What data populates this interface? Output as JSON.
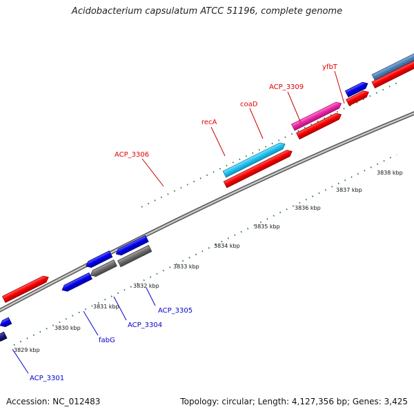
{
  "title": "Acidobacterium capsulatum ATCC 51196, complete genome",
  "accession_text": "Accession: NC_012483",
  "summary_text": "Topology: circular; Length: 4,127,356 bp; Genes: 3,425",
  "colors": {
    "forward_label": "#dd0000",
    "reverse_label": "#0000cc",
    "backbone": "#8c8c8c",
    "tick": "#2a7a2a"
  },
  "scale_ticks": [
    {
      "label": "3829 kbp"
    },
    {
      "label": "3830 kbp"
    },
    {
      "label": "3831 kbp"
    },
    {
      "label": "3832 kbp"
    },
    {
      "label": "3833 kbp"
    },
    {
      "label": "3834 kbp"
    },
    {
      "label": "3835 kbp"
    },
    {
      "label": "3836 kbp"
    },
    {
      "label": "3837 kbp"
    },
    {
      "label": "3838 kbp"
    }
  ],
  "gene_labels": [
    {
      "text": "ACP_3306",
      "strand": "forward"
    },
    {
      "text": "recA",
      "strand": "forward"
    },
    {
      "text": "coaD",
      "strand": "forward"
    },
    {
      "text": "ACP_3309",
      "strand": "forward"
    },
    {
      "text": "yfbT",
      "strand": "forward"
    },
    {
      "text": "ACP_3305",
      "strand": "reverse"
    },
    {
      "text": "ACP_3304",
      "strand": "reverse"
    },
    {
      "text": "fabG",
      "strand": "reverse"
    },
    {
      "text": "ACP_3301",
      "strand": "reverse"
    }
  ]
}
